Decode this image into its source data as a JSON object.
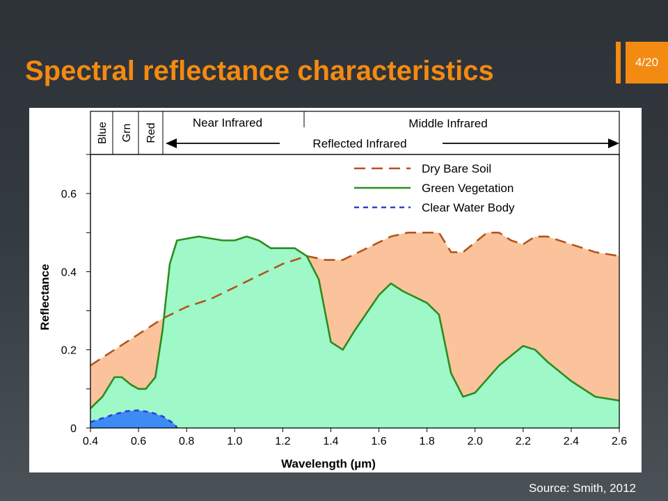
{
  "slide": {
    "title": "Spectral reflectance characteristics",
    "page_number": "4/20",
    "source": "Source: Smith, 2012",
    "accent_color": "#f38a12"
  },
  "chart_data": {
    "type": "area",
    "xlabel": "Wavelength (µm)",
    "ylabel": "Reflectance",
    "xlim": [
      0.4,
      2.6
    ],
    "ylim": [
      0,
      0.7
    ],
    "xticks": [
      "0.4",
      "0.6",
      "0.8",
      "1.0",
      "1.2",
      "1.4",
      "1.6",
      "1.8",
      "2.0",
      "2.2",
      "2.4",
      "2.6"
    ],
    "yticks": [
      "0",
      "0.2",
      "0.4",
      "0.6"
    ],
    "grid": false,
    "legend_position": "top-right",
    "bands": [
      {
        "label": "Blue"
      },
      {
        "label": "Grn"
      },
      {
        "label": "Red"
      }
    ],
    "regions": {
      "near_infrared": "Near Infrared",
      "middle_infrared": "Middle Infrared",
      "reflected_infrared": "Reflected Infrared"
    },
    "series": [
      {
        "name": "Dry Bare Soil",
        "color": "#b5531c",
        "fill": "#fac39b",
        "style": "long-dash",
        "points": [
          [
            0.4,
            0.16
          ],
          [
            0.5,
            0.2
          ],
          [
            0.6,
            0.24
          ],
          [
            0.7,
            0.28
          ],
          [
            0.8,
            0.31
          ],
          [
            0.9,
            0.33
          ],
          [
            1.0,
            0.36
          ],
          [
            1.1,
            0.39
          ],
          [
            1.2,
            0.42
          ],
          [
            1.3,
            0.44
          ],
          [
            1.38,
            0.43
          ],
          [
            1.45,
            0.43
          ],
          [
            1.55,
            0.46
          ],
          [
            1.65,
            0.49
          ],
          [
            1.72,
            0.5
          ],
          [
            1.85,
            0.5
          ],
          [
            1.9,
            0.45
          ],
          [
            1.95,
            0.45
          ],
          [
            2.05,
            0.5
          ],
          [
            2.1,
            0.5
          ],
          [
            2.15,
            0.48
          ],
          [
            2.2,
            0.47
          ],
          [
            2.25,
            0.49
          ],
          [
            2.3,
            0.49
          ],
          [
            2.4,
            0.47
          ],
          [
            2.5,
            0.45
          ],
          [
            2.6,
            0.44
          ]
        ]
      },
      {
        "name": "Green Vegetation",
        "color": "#2a8c1e",
        "fill": "#9ef8c8",
        "style": "solid",
        "points": [
          [
            0.4,
            0.05
          ],
          [
            0.45,
            0.08
          ],
          [
            0.5,
            0.13
          ],
          [
            0.53,
            0.13
          ],
          [
            0.57,
            0.11
          ],
          [
            0.6,
            0.1
          ],
          [
            0.63,
            0.1
          ],
          [
            0.67,
            0.13
          ],
          [
            0.7,
            0.25
          ],
          [
            0.73,
            0.42
          ],
          [
            0.76,
            0.48
          ],
          [
            0.85,
            0.49
          ],
          [
            0.95,
            0.48
          ],
          [
            1.0,
            0.48
          ],
          [
            1.05,
            0.49
          ],
          [
            1.1,
            0.48
          ],
          [
            1.15,
            0.46
          ],
          [
            1.25,
            0.46
          ],
          [
            1.3,
            0.44
          ],
          [
            1.35,
            0.38
          ],
          [
            1.4,
            0.22
          ],
          [
            1.45,
            0.2
          ],
          [
            1.5,
            0.25
          ],
          [
            1.6,
            0.34
          ],
          [
            1.65,
            0.37
          ],
          [
            1.7,
            0.35
          ],
          [
            1.8,
            0.32
          ],
          [
            1.85,
            0.29
          ],
          [
            1.9,
            0.14
          ],
          [
            1.95,
            0.08
          ],
          [
            2.0,
            0.09
          ],
          [
            2.1,
            0.16
          ],
          [
            2.2,
            0.21
          ],
          [
            2.25,
            0.2
          ],
          [
            2.3,
            0.17
          ],
          [
            2.4,
            0.12
          ],
          [
            2.5,
            0.08
          ],
          [
            2.6,
            0.07
          ]
        ]
      },
      {
        "name": "Clear Water Body",
        "color": "#2e3dd6",
        "fill": "#3d8cf6",
        "style": "short-dash",
        "points": [
          [
            0.4,
            0.015
          ],
          [
            0.45,
            0.025
          ],
          [
            0.5,
            0.035
          ],
          [
            0.55,
            0.043
          ],
          [
            0.6,
            0.045
          ],
          [
            0.65,
            0.04
          ],
          [
            0.7,
            0.03
          ],
          [
            0.75,
            0.01
          ],
          [
            0.76,
            0.0
          ]
        ]
      }
    ]
  }
}
